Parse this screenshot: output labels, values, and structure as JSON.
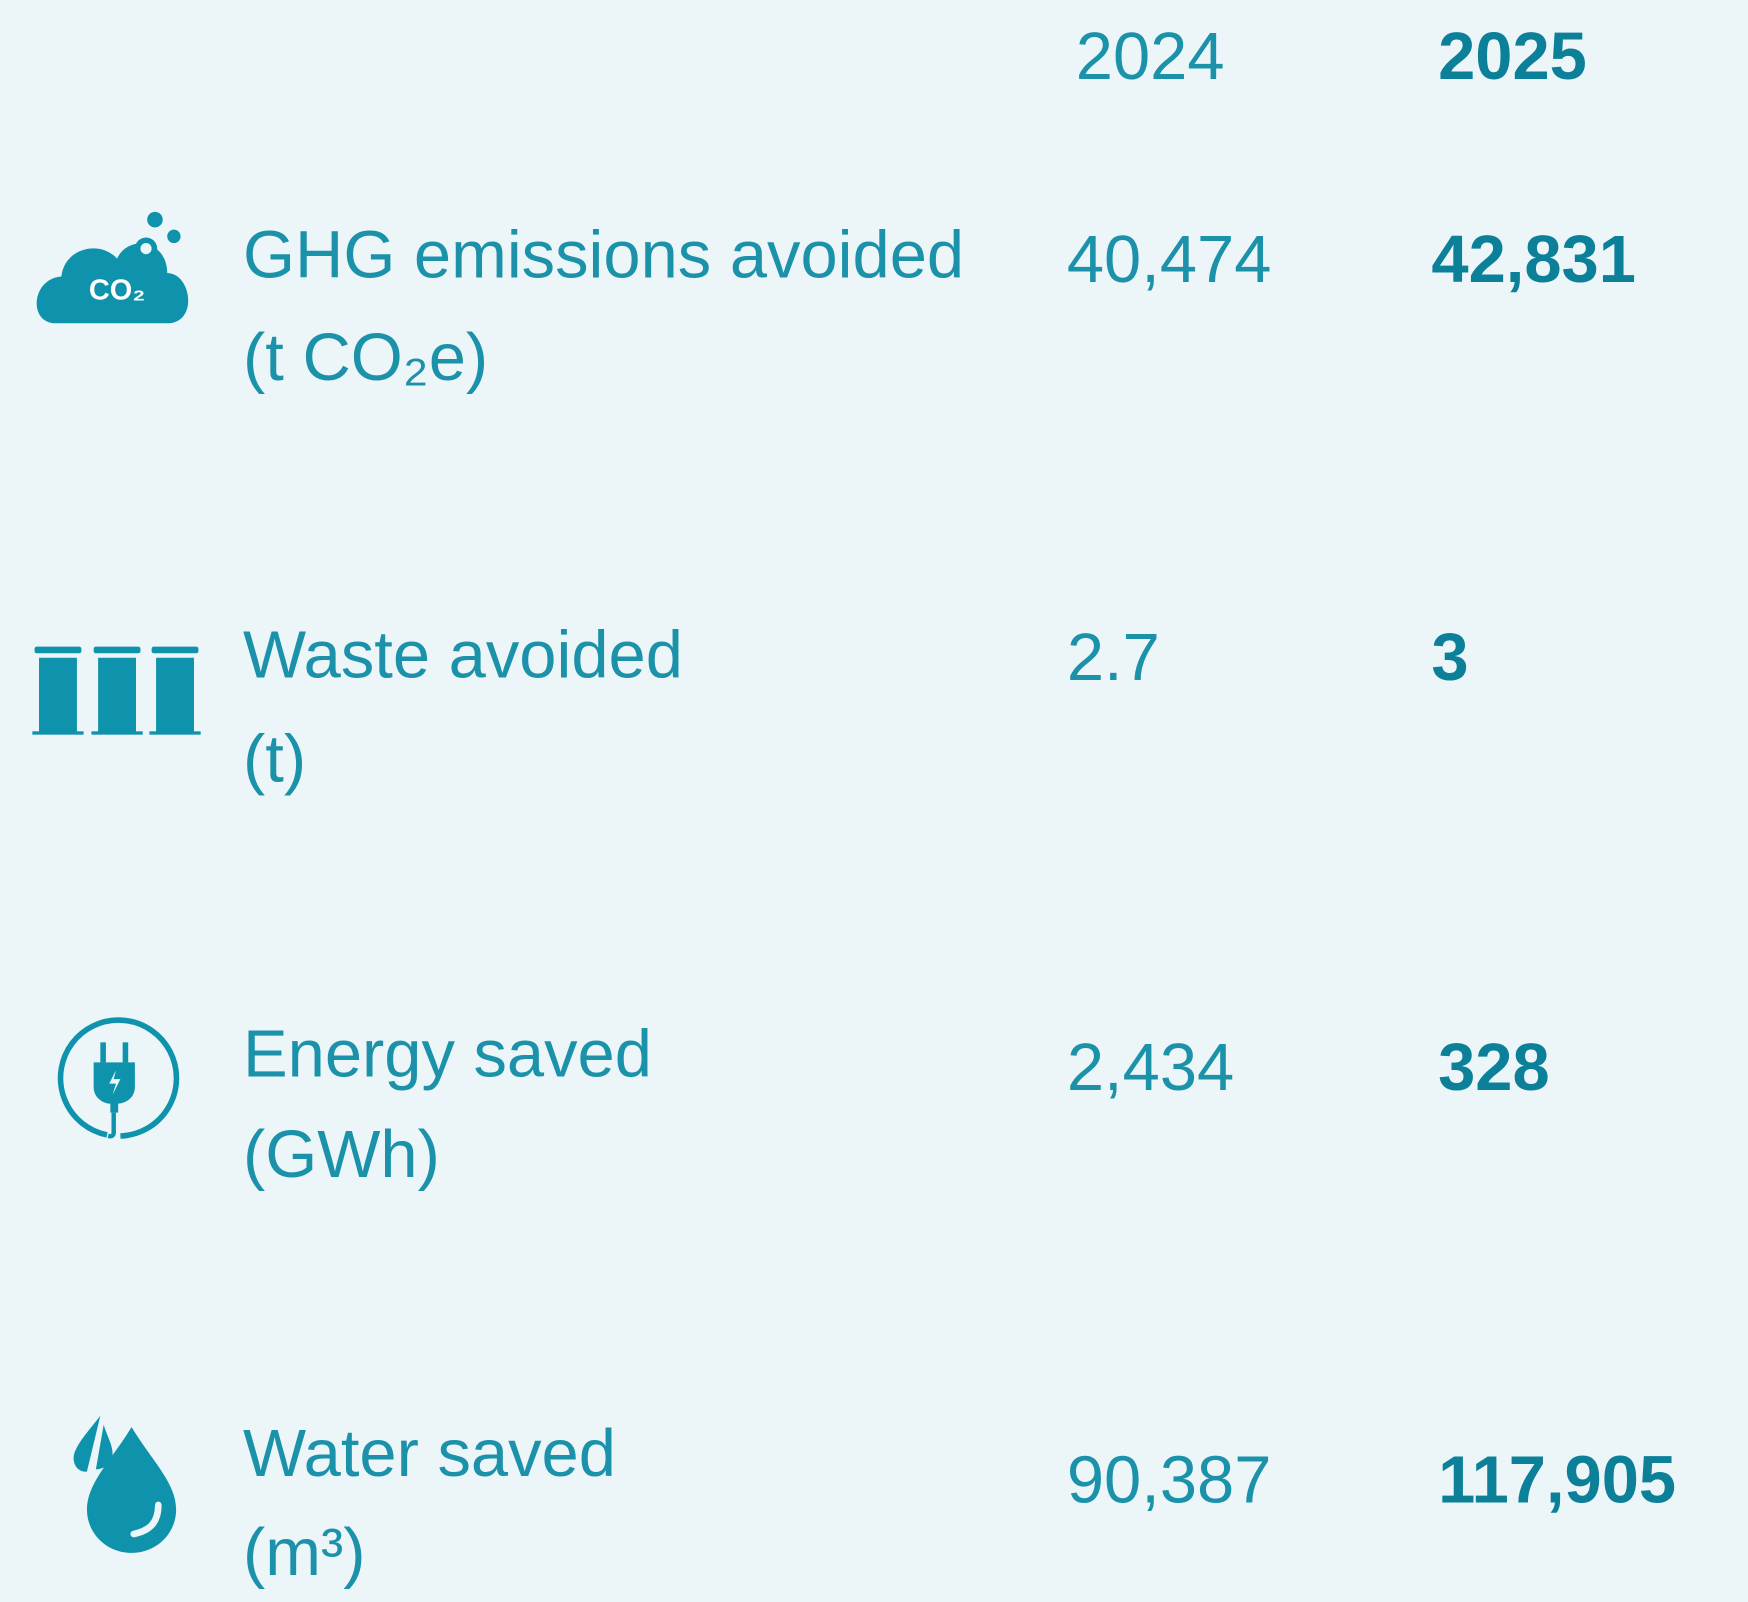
{
  "table": {
    "headers": [
      "2024",
      "2025"
    ],
    "rows": [
      {
        "label": [
          "GHG emissions avoided",
          "(t CO₂e)"
        ],
        "values": [
          "40,474",
          "42,831"
        ],
        "icon_text": "CO₂"
      },
      {
        "label": [
          "Waste avoided",
          "(t)"
        ],
        "values": [
          "2.7",
          "3"
        ]
      },
      {
        "label": [
          "Energy saved",
          "(GWh)"
        ],
        "values": [
          "2,434",
          "328"
        ]
      },
      {
        "label": [
          "Water saved",
          "(m³)"
        ],
        "values": [
          "90,387",
          "117,905"
        ]
      }
    ]
  }
}
